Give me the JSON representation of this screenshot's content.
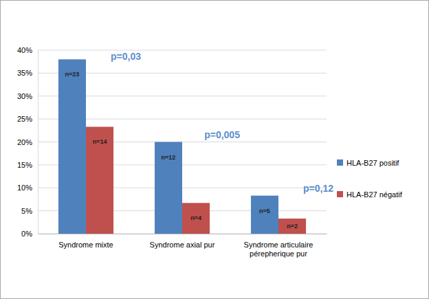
{
  "chart_data": {
    "type": "bar",
    "categories": [
      "Syndrome mixte",
      "Syndrome axial pur",
      "Syndrome articulaire pérepherique pur"
    ],
    "series": [
      {
        "name": "HLA-B27 positif",
        "color": "#4f81bd",
        "values": [
          38,
          20,
          8.3
        ],
        "n_labels": [
          "n=23",
          "n=12",
          "n=5"
        ]
      },
      {
        "name": "HLA-B27 négatif",
        "color": "#c0504d",
        "values": [
          23.3,
          6.7,
          3.3
        ],
        "n_labels": [
          "n=14",
          "n=4",
          "n=2"
        ]
      }
    ],
    "p_values": [
      "p=0,03",
      "p=0,005",
      "p=0,12"
    ],
    "ylim": [
      0,
      40
    ],
    "yticks": [
      {
        "value": 0,
        "label": "0%"
      },
      {
        "value": 5,
        "label": "5%"
      },
      {
        "value": 10,
        "label": "10%"
      },
      {
        "value": 15,
        "label": "15%"
      },
      {
        "value": 20,
        "label": "20%"
      },
      {
        "value": 25,
        "label": "25%"
      },
      {
        "value": 30,
        "label": "30%"
      },
      {
        "value": 35,
        "label": "35%"
      },
      {
        "value": 40,
        "label": "40%"
      }
    ],
    "grid": true,
    "legend": "right"
  }
}
